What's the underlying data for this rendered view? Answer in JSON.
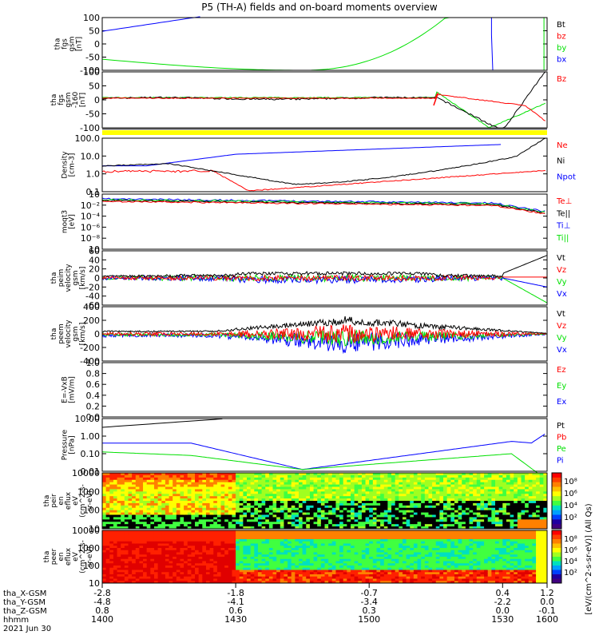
{
  "title": "P5 (TH-A) fields and on-board moments overview",
  "colors": {
    "black": "#000000",
    "red": "#ff0000",
    "green": "#00e000",
    "blue": "#0000ff",
    "yellow": "#ffff00"
  },
  "chart_data": {
    "type": "line",
    "title": "P5 (TH-A) fields and on-board moments overview",
    "x_axis": {
      "tick_positions_hhmm": [
        "1400",
        "1430",
        "1500",
        "1530",
        "1600"
      ],
      "rows": [
        {
          "label": "tha_X-GSM",
          "values": [
            "-2.8",
            "-1.8",
            "-0.7",
            "0.4",
            "1.2"
          ]
        },
        {
          "label": "tha_Y-GSM",
          "values": [
            "-4.8",
            "-4.1",
            "-3.4",
            "-2.2",
            "0.0"
          ]
        },
        {
          "label": "tha_Z-GSM",
          "values": [
            "0.8",
            "0.6",
            "0.3",
            "0.0",
            "-0.1"
          ]
        },
        {
          "label": "hhmm",
          "values": [
            "1400",
            "1430",
            "1500",
            "1530",
            "1600"
          ]
        }
      ],
      "date": "2021 Jun 30"
    },
    "panels": [
      {
        "ylabel": [
          "tha",
          "fgs",
          "gsm",
          "[nT]"
        ],
        "ticks": [
          "100",
          "50",
          "0",
          "-50",
          "-100"
        ],
        "legend": [
          {
            "name": "Bt",
            "color": "black"
          },
          {
            "name": "bz",
            "color": "red"
          },
          {
            "name": "by",
            "color": "green"
          },
          {
            "name": "bx",
            "color": "blue"
          }
        ]
      },
      {
        "ylabel": [
          "tha",
          "fgs",
          "gsm",
          "-160",
          "[nT]"
        ],
        "ticks": [
          "100",
          "50",
          "0",
          "-50",
          "-100"
        ],
        "legend": [
          {
            "name": "Bz",
            "color": "red"
          }
        ]
      },
      {
        "ylabel": [
          "Density",
          "[cm-3]"
        ],
        "ticks": [
          "100.0",
          "10.0",
          "1.0",
          "0.1"
        ],
        "legend": [
          {
            "name": "Ne",
            "color": "red"
          },
          {
            "name": "Ni",
            "color": "black"
          },
          {
            "name": "Npot",
            "color": "blue"
          }
        ]
      },
      {
        "ylabel": [
          "moqt3",
          "[eV]"
        ],
        "ticks": [
          "10",
          "10⁻²",
          "10⁻⁴",
          "10⁻⁶",
          "10⁻⁸",
          "10"
        ],
        "legend": [
          {
            "name": "Te⊥",
            "color": "red"
          },
          {
            "name": "Te||",
            "color": "black"
          },
          {
            "name": "Ti⊥",
            "color": "blue"
          },
          {
            "name": "Ti||",
            "color": "green"
          }
        ]
      },
      {
        "ylabel": [
          "tha",
          "peim",
          "velocity",
          "gsm",
          "[km/s]"
        ],
        "ticks": [
          "60",
          "40",
          "20",
          "0",
          "-20",
          "-40",
          "-60"
        ],
        "legend": [
          {
            "name": "Vt",
            "color": "black"
          },
          {
            "name": "Vz",
            "color": "red"
          },
          {
            "name": "Vy",
            "color": "green"
          },
          {
            "name": "Vx",
            "color": "blue"
          }
        ]
      },
      {
        "ylabel": [
          "tha",
          "peem",
          "velocity",
          "gsm",
          "[km/s]"
        ],
        "ticks": [
          "400",
          "200",
          "0",
          "-200",
          "-400"
        ],
        "legend": [
          {
            "name": "Vt",
            "color": "black"
          },
          {
            "name": "Vz",
            "color": "red"
          },
          {
            "name": "Vy",
            "color": "green"
          },
          {
            "name": "Vx",
            "color": "blue"
          }
        ]
      },
      {
        "ylabel": [
          "E=-VxB",
          "[mV/m]"
        ],
        "ticks": [
          "1.0",
          "0.8",
          "0.6",
          "0.4",
          "0.2",
          "0.0"
        ],
        "legend": [
          {
            "name": "Ez",
            "color": "red"
          },
          {
            "name": "Ey",
            "color": "green"
          },
          {
            "name": "Ex",
            "color": "blue"
          }
        ]
      },
      {
        "ylabel": [
          "Pressure",
          "[nPa]"
        ],
        "ticks": [
          "10.00",
          "1.00",
          "0.10",
          "0.01"
        ],
        "legend": [
          {
            "name": "Pt",
            "color": "black"
          },
          {
            "name": "Pb",
            "color": "red"
          },
          {
            "name": "Pe",
            "color": "green"
          },
          {
            "name": "Pi",
            "color": "blue"
          }
        ]
      },
      {
        "ylabel": [
          "tha",
          "peir",
          "en",
          "eflux",
          "eV",
          "(cm^2-s-",
          "sr-eV)"
        ],
        "ticks": [
          "10000",
          "1000",
          "100",
          "10"
        ]
      },
      {
        "ylabel": [
          "tha",
          "peer",
          "en",
          "eflux",
          "eV",
          "(cm^2-s-",
          "sr-eV)"
        ],
        "ticks": [
          "10000",
          "1000",
          "100",
          "10"
        ]
      }
    ],
    "colorbar": {
      "upper_ticks": [
        "10⁸",
        "10⁶",
        "10⁴",
        "10²"
      ],
      "lower_ticks": [
        "10⁸",
        "10⁶",
        "10⁴",
        "10²"
      ],
      "label": "[eV/(cm^2-s-sr-eV)] (All Qs)"
    }
  }
}
